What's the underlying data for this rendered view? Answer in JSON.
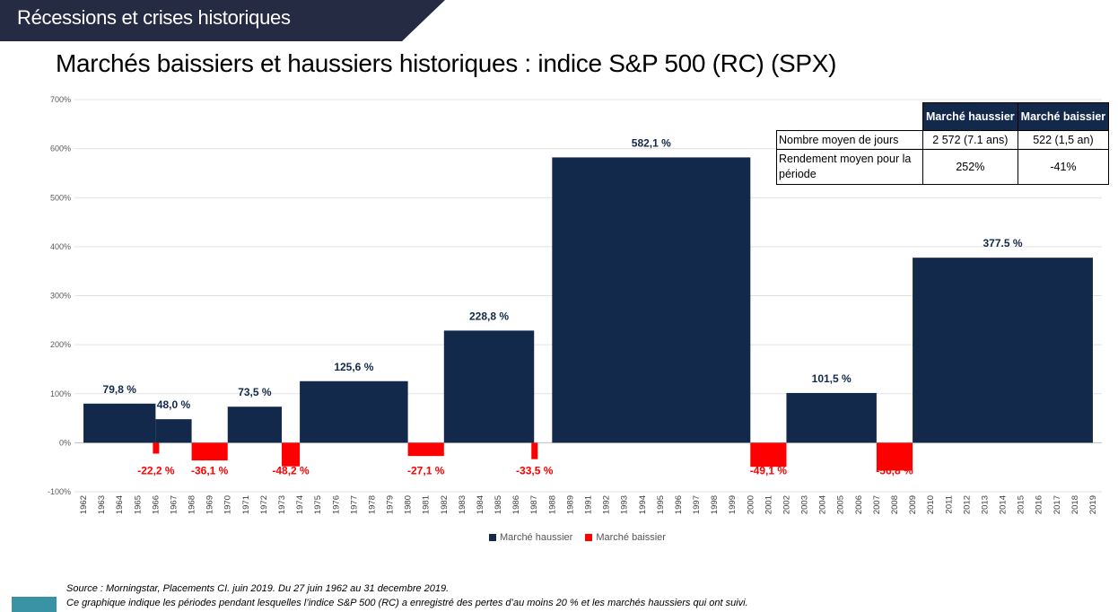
{
  "header": {
    "banner_text": "Récessions et crises historiques"
  },
  "title": "Marchés baissiers et haussiers historiques : indice S&P 500 (RC) (SPX)",
  "colors": {
    "bull": "#13294b",
    "bear": "#ff0000",
    "banner": "#242b42",
    "corner": "#3a93a5"
  },
  "chart_data": {
    "type": "bar",
    "title": "Marchés baissiers et haussiers historiques : indice S&P 500 (RC) (SPX)",
    "ylim": [
      -100,
      700
    ],
    "y_ticks": [
      "-100%",
      "0%",
      "100%",
      "200%",
      "300%",
      "400%",
      "500%",
      "600%",
      "700%"
    ],
    "y_tick_values": [
      -100,
      0,
      100,
      200,
      300,
      400,
      500,
      600,
      700
    ],
    "x_labels": [
      "1962",
      "1963",
      "1964",
      "1965",
      "1966",
      "1967",
      "1968",
      "1969",
      "1970",
      "1971",
      "1972",
      "1973",
      "1974",
      "1975",
      "1976",
      "1977",
      "1978",
      "1979",
      "1980",
      "1981",
      "1982",
      "1983",
      "1984",
      "1985",
      "1986",
      "1987",
      "1988",
      "1989",
      "1991",
      "1992",
      "1993",
      "1994",
      "1995",
      "1996",
      "1997",
      "1998",
      "1999",
      "2000",
      "2001",
      "2002",
      "2003",
      "2004",
      "2005",
      "2006",
      "2007",
      "2008",
      "2009",
      "2010",
      "2011",
      "2012",
      "2013",
      "2014",
      "2015",
      "2016",
      "2017",
      "2018",
      "2019"
    ],
    "grid": true,
    "legend_position": "bottom-center",
    "series": [
      {
        "name": "Marché haussier",
        "key": "bull"
      },
      {
        "name": "Marché baissier",
        "key": "bear"
      }
    ],
    "bars": [
      {
        "series": "bull",
        "start": "1962",
        "end": "1966",
        "value": 79.8,
        "label": "79,8 %"
      },
      {
        "series": "bear",
        "start": "1966",
        "end": "1966",
        "value": -22.2,
        "label": "-22,2 %"
      },
      {
        "series": "bull",
        "start": "1966",
        "end": "1968",
        "value": 48.0,
        "label": "48,0 %"
      },
      {
        "series": "bear",
        "start": "1968",
        "end": "1970",
        "value": -36.1,
        "label": "-36,1 %"
      },
      {
        "series": "bull",
        "start": "1970",
        "end": "1973",
        "value": 73.5,
        "label": "73,5 %"
      },
      {
        "series": "bear",
        "start": "1973",
        "end": "1974",
        "value": -48.2,
        "label": "-48,2 %"
      },
      {
        "series": "bull",
        "start": "1974",
        "end": "1980",
        "value": 125.6,
        "label": "125,6 %"
      },
      {
        "series": "bear",
        "start": "1980",
        "end": "1982",
        "value": -27.1,
        "label": "-27,1 %"
      },
      {
        "series": "bull",
        "start": "1982",
        "end": "1987",
        "value": 228.8,
        "label": "228,8 %"
      },
      {
        "series": "bear",
        "start": "1987",
        "end": "1987",
        "value": -33.5,
        "label": "-33,5 %"
      },
      {
        "series": "bull",
        "start": "1988",
        "end": "2000",
        "value": 582.1,
        "label": "582,1 %"
      },
      {
        "series": "bear",
        "start": "2000",
        "end": "2002",
        "value": -49.1,
        "label": "-49,1 %"
      },
      {
        "series": "bull",
        "start": "2002",
        "end": "2007",
        "value": 101.5,
        "label": "101,5 %"
      },
      {
        "series": "bear",
        "start": "2007",
        "end": "2009",
        "value": -56.8,
        "label": "-56,8 %"
      },
      {
        "series": "bull",
        "start": "2009",
        "end": "2019",
        "value": 377.5,
        "label": "377.5 %"
      }
    ]
  },
  "summary_table": {
    "headers": [
      "Marché haussier",
      "Marché baissier"
    ],
    "rows": [
      {
        "label": "Nombre moyen de jours",
        "bull": "2 572 (7.1 ans)",
        "bear": "522 (1,5 an)"
      },
      {
        "label": "Rendement moyen pour la période",
        "bull": "252%",
        "bear": "-41%"
      }
    ]
  },
  "legend": {
    "bull_label": "Marché haussier",
    "bear_label": "Marché baissier"
  },
  "source": {
    "line1": "Source : Morningstar, Placements CI. juin 2019. Du 27 juin 1962 au 31 decembre 2019.",
    "line2": "Ce graphique indique les périodes pendant lesquelles l’indice S&P 500 (RC) a enregistré des pertes d’au moins 20 % et les marchés haussiers qui ont suivi."
  }
}
